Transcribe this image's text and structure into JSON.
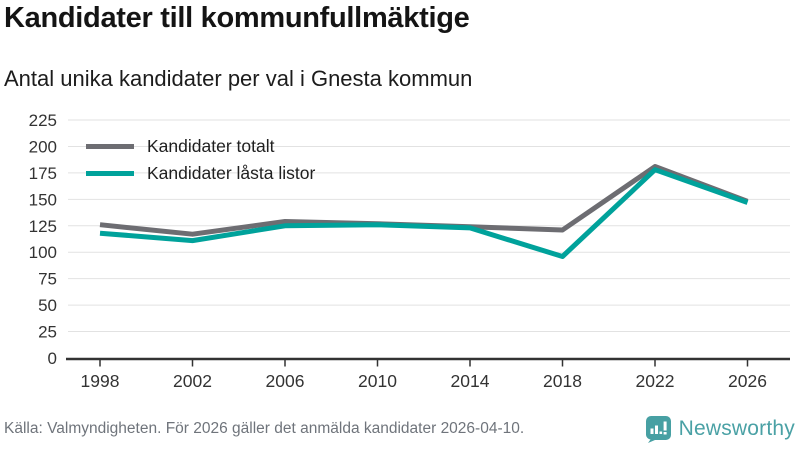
{
  "chart_data": {
    "type": "line",
    "title": "Kandidater till kommunfullmäktige",
    "subtitle": "Antal unika kandidater per val i Gnesta kommun",
    "categories": [
      "1998",
      "2002",
      "2006",
      "2010",
      "2014",
      "2018",
      "2022",
      "2026"
    ],
    "series": [
      {
        "name": "Kandidater totalt",
        "color": "#6d6d72",
        "values": [
          126,
          117,
          129,
          127,
          124,
          121,
          181,
          148
        ]
      },
      {
        "name": "Kandidater låsta listor",
        "color": "#00a29b",
        "values": [
          118,
          111,
          125,
          126,
          123,
          96,
          178,
          147
        ]
      }
    ],
    "ylim": [
      0,
      225
    ],
    "yticks": [
      0,
      25,
      50,
      75,
      100,
      125,
      150,
      175,
      200,
      225
    ],
    "grid": "horizontal",
    "legend_position": "top-left",
    "source_note": "Källa: Valmyndigheten. För 2026 gäller det anmälda kandidater 2026-04-10.",
    "brand": "Newsworthy"
  },
  "colors": {
    "grid": "#e2e2e2",
    "axis": "#333333",
    "brand_teal": "#4aa1a5"
  }
}
